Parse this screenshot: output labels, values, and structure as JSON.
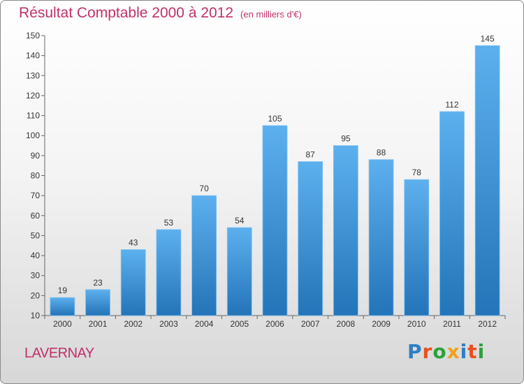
{
  "header": {
    "title": "Résultat Comptable 2000 à 2012",
    "unit": "(en milliers d'€)"
  },
  "footer": {
    "commune": "LAVERNAY",
    "logo": "Proxiti",
    "logo_colors": [
      "#2e7fc4",
      "#e8501f",
      "#2aa13a",
      "#f0a21c",
      "#2e7fc4",
      "#e8501f",
      "#2aa13a"
    ]
  },
  "chart_data": {
    "type": "bar",
    "title": "Résultat Comptable 2000 à 2012",
    "subtitle": "(en milliers d'€)",
    "categories": [
      "2000",
      "2001",
      "2002",
      "2003",
      "2004",
      "2005",
      "2006",
      "2007",
      "2008",
      "2009",
      "2010",
      "2011",
      "2012"
    ],
    "values": [
      19,
      23,
      43,
      53,
      70,
      54,
      105,
      87,
      95,
      88,
      78,
      112,
      145
    ],
    "ylim": [
      10,
      150
    ],
    "yticks": [
      10,
      20,
      30,
      40,
      50,
      60,
      70,
      80,
      90,
      100,
      110,
      120,
      130,
      140,
      150
    ],
    "grid": false,
    "bar_color": "#3a8fd6",
    "bar_color_light": "#5db0ee",
    "bar_color_dark": "#2374b8",
    "data_labels": true
  }
}
